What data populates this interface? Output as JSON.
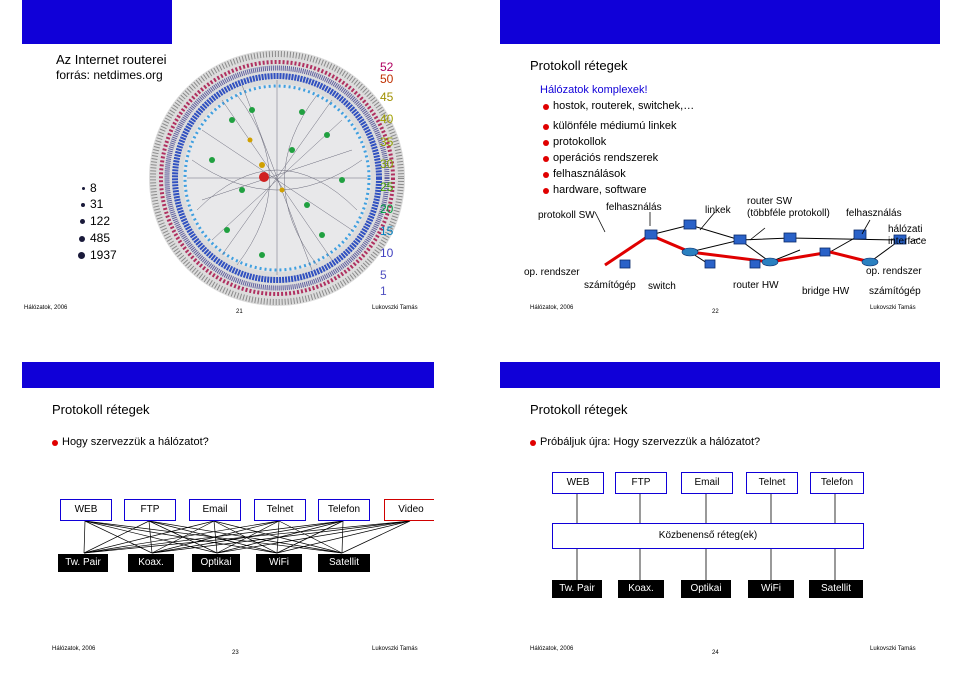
{
  "slide21": {
    "title_line1": "Az Internet routerei",
    "title_line2": "forrás: netdimes.org",
    "legend": [
      "8",
      "31",
      "122",
      "485",
      "1937"
    ],
    "scale": [
      "52",
      "50",
      "45",
      "40",
      "35",
      "30",
      "25",
      "20",
      "15",
      "10",
      "5",
      "1"
    ],
    "scale_colors": [
      "#b00060",
      "#c03000",
      "#a0a000",
      "#a0a000",
      "#90a000",
      "#80a000",
      "#60a000",
      "#00a040",
      "#0080c0",
      "#4040c0",
      "#4040c0",
      "#4040c0"
    ],
    "footer_left": "Hálózatok, 2006",
    "footer_num": "21",
    "footer_right": "Lukovszki Tamás"
  },
  "slide22": {
    "title": "Protokoll rétegek",
    "intro": "Hálózatok komplexek!",
    "bullets": [
      "hostok, routerek, switchek,…",
      "különféle médiumú linkek",
      "protokollok",
      "operációs rendszerek",
      "felhasználások",
      "hardware, software"
    ],
    "labels": {
      "protokoll_sw": "protokoll SW",
      "felhasznalas1": "felhasználás",
      "linkek": "linkek",
      "router_sw": "router SW",
      "tobbfele": "(többféle protokoll)",
      "felhasznalas2": "felhasználás",
      "halozati": "hálózati",
      "interface": "interface",
      "op_rendszer1": "op. rendszer",
      "szamitogep1": "számítógép",
      "switch": "switch",
      "router_hw": "router HW",
      "bridge_hw": "bridge HW",
      "op_rendszer2": "op. rendszer",
      "szamitogep2": "számítógép"
    },
    "footer_left": "Hálózatok, 2006",
    "footer_num": "22",
    "footer_right": "Lukovszki Tamás"
  },
  "slide23": {
    "title": "Protokoll rétegek",
    "bullet": "Hogy szervezzük a hálózatot?",
    "apps": [
      "WEB",
      "FTP",
      "Email",
      "Telnet",
      "Telefon",
      "Video"
    ],
    "media": [
      "Tw. Pair",
      "Koax.",
      "Optikai",
      "WiFi",
      "Satellit"
    ],
    "footer_left": "Hálózatok, 2006",
    "footer_num": "23",
    "footer_right": "Lukovszki Tamás"
  },
  "slide24": {
    "title": "Protokoll rétegek",
    "bullet": "Próbáljuk újra: Hogy szervezzük a hálózatot?",
    "apps": [
      "WEB",
      "FTP",
      "Email",
      "Telnet",
      "Telefon"
    ],
    "middle": "Közbenenső réteg(ek)",
    "media": [
      "Tw. Pair",
      "Koax.",
      "Optikai",
      "WiFi",
      "Satellit"
    ],
    "footer_left": "Hálózatok, 2006",
    "footer_num": "24",
    "footer_right": "Lukovszki Tamás"
  }
}
